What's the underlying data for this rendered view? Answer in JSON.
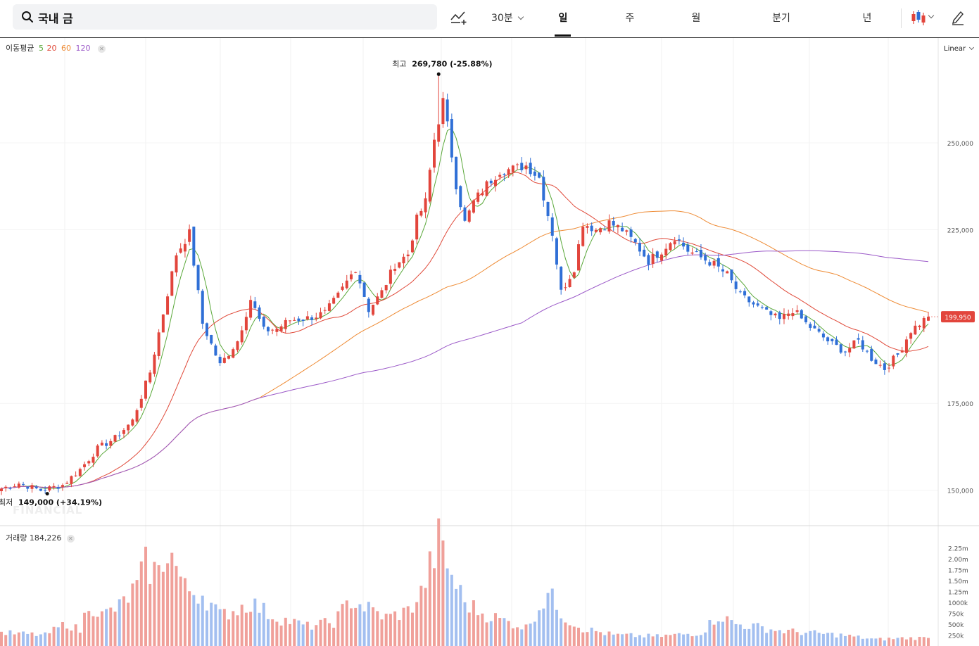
{
  "search": {
    "value": "국내 금"
  },
  "toolbar": {
    "interval": "30분",
    "tabs": [
      "일",
      "주",
      "월",
      "분기",
      "년"
    ],
    "active_tab": "일"
  },
  "ma_legend": {
    "title": "이동평균",
    "periods": [
      "5",
      "20",
      "60",
      "120"
    ],
    "colors": [
      "#5aa83a",
      "#e04a3a",
      "#ee8a33",
      "#9b59c8"
    ]
  },
  "scale": "Linear",
  "volume_legend": {
    "label": "거래량",
    "value": "184,226"
  },
  "watermark": "FINANCIAL",
  "colors": {
    "up": "#e2453c",
    "down": "#2f6fd6",
    "up_vol": "#f0a09a",
    "down_vol": "#a3bff0",
    "price_tag": "#e2453c"
  },
  "chart_data": {
    "type": "candlestick",
    "y_ticks": [
      "150,000",
      "175,000",
      "225,000",
      "250,000"
    ],
    "ylim": [
      140000,
      272500
    ],
    "current_price": "199,950",
    "annotations": {
      "high": {
        "label": "최고",
        "value": "269,780 (-25.88%)",
        "price": 269780
      },
      "low": {
        "label": "최저",
        "value": "149,000 (+34.19%)",
        "price": 149000
      }
    },
    "close_anchors": [
      [
        0,
        150500
      ],
      [
        4,
        152000
      ],
      [
        9,
        150000
      ],
      [
        14,
        151500
      ],
      [
        18,
        156000
      ],
      [
        22,
        162000
      ],
      [
        26,
        165000
      ],
      [
        30,
        170000
      ],
      [
        34,
        184000
      ],
      [
        37,
        201000
      ],
      [
        40,
        218000
      ],
      [
        43,
        224000
      ],
      [
        46,
        198000
      ],
      [
        50,
        186000
      ],
      [
        54,
        193000
      ],
      [
        57,
        205000
      ],
      [
        60,
        196000
      ],
      [
        63,
        196500
      ],
      [
        66,
        199000
      ],
      [
        70,
        199500
      ],
      [
        74,
        201000
      ],
      [
        77,
        206000
      ],
      [
        81,
        214000
      ],
      [
        84,
        202000
      ],
      [
        87,
        207000
      ],
      [
        90,
        215000
      ],
      [
        93,
        218000
      ],
      [
        95,
        228000
      ],
      [
        97,
        233000
      ],
      [
        99,
        251000
      ],
      [
        101,
        262000
      ],
      [
        102,
        255000
      ],
      [
        104,
        238000
      ],
      [
        106,
        227000
      ],
      [
        108,
        233000
      ],
      [
        111,
        238000
      ],
      [
        114,
        242000
      ],
      [
        117,
        242500
      ],
      [
        120,
        243500
      ],
      [
        123,
        240000
      ],
      [
        126,
        224000
      ],
      [
        128,
        207000
      ],
      [
        131,
        214000
      ],
      [
        133,
        227000
      ],
      [
        136,
        225000
      ],
      [
        139,
        227000
      ],
      [
        142,
        225000
      ],
      [
        145,
        221000
      ],
      [
        148,
        216000
      ],
      [
        151,
        219000
      ],
      [
        154,
        223000
      ],
      [
        157,
        219000
      ],
      [
        160,
        217000
      ],
      [
        163,
        215000
      ],
      [
        166,
        212000
      ],
      [
        169,
        206000
      ],
      [
        172,
        203500
      ],
      [
        175,
        201000
      ],
      [
        178,
        199000
      ],
      [
        181,
        202000
      ],
      [
        184,
        198000
      ],
      [
        187,
        195000
      ],
      [
        190,
        192000
      ],
      [
        193,
        190000
      ],
      [
        196,
        193000
      ],
      [
        199,
        188000
      ],
      [
        202,
        185000
      ],
      [
        205,
        189000
      ],
      [
        208,
        196000
      ],
      [
        211,
        199000
      ],
      [
        212,
        199950
      ]
    ],
    "volume_ticks": [
      "2.25m",
      "2.00m",
      "1.75m",
      "1.50m",
      "1.25m",
      "1000k",
      "750k",
      "500k",
      "250k"
    ],
    "volume_max": 2400000,
    "volume_anchors": [
      [
        0,
        300000
      ],
      [
        10,
        250000
      ],
      [
        15,
        520000
      ],
      [
        18,
        350000
      ],
      [
        20,
        1000000
      ],
      [
        23,
        700000
      ],
      [
        27,
        900000
      ],
      [
        31,
        1350000
      ],
      [
        33,
        1850000
      ],
      [
        36,
        1650000
      ],
      [
        38,
        2300000
      ],
      [
        42,
        1300000
      ],
      [
        46,
        1200000
      ],
      [
        50,
        700000
      ],
      [
        54,
        850000
      ],
      [
        57,
        1000000
      ],
      [
        62,
        680000
      ],
      [
        70,
        450000
      ],
      [
        76,
        550000
      ],
      [
        80,
        1050000
      ],
      [
        84,
        850000
      ],
      [
        88,
        650000
      ],
      [
        93,
        800000
      ],
      [
        96,
        1200000
      ],
      [
        100,
        2400000
      ],
      [
        103,
        1600000
      ],
      [
        106,
        1000000
      ],
      [
        110,
        750000
      ],
      [
        115,
        580000
      ],
      [
        120,
        420000
      ],
      [
        125,
        1200000
      ],
      [
        129,
        650000
      ],
      [
        133,
        400000
      ],
      [
        140,
        250000
      ],
      [
        150,
        220000
      ],
      [
        160,
        300000
      ],
      [
        164,
        700000
      ],
      [
        168,
        500000
      ],
      [
        172,
        450000
      ],
      [
        178,
        350000
      ],
      [
        185,
        300000
      ],
      [
        192,
        250000
      ],
      [
        200,
        150000
      ],
      [
        206,
        180000
      ],
      [
        212,
        184226
      ]
    ]
  }
}
